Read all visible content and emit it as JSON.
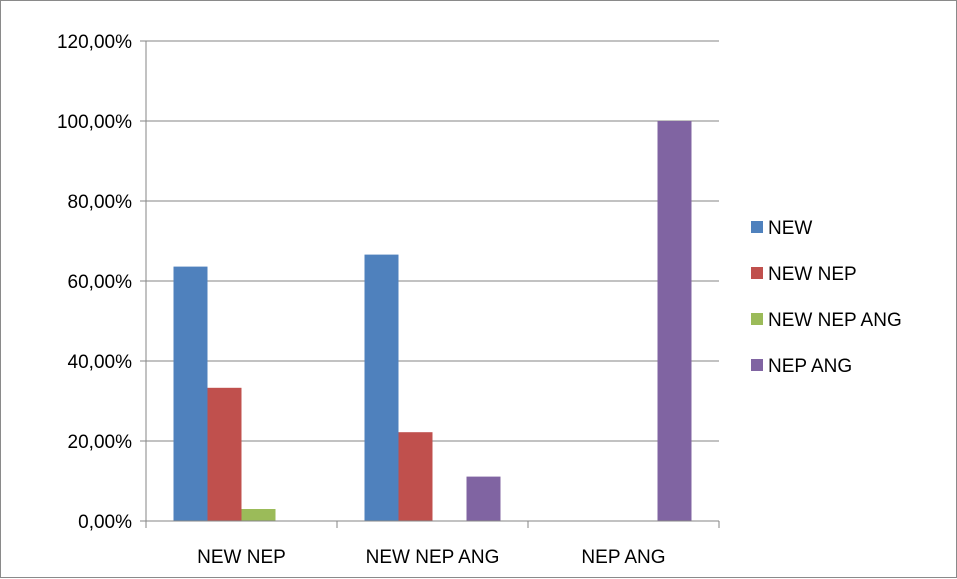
{
  "chart_data": {
    "type": "bar",
    "title": "",
    "xlabel": "",
    "ylabel": "",
    "ylim": [
      0,
      1.2
    ],
    "yticks": [
      {
        "value": 0,
        "label": "0,00%"
      },
      {
        "value": 0.2,
        "label": "20,00%"
      },
      {
        "value": 0.4,
        "label": "40,00%"
      },
      {
        "value": 0.6,
        "label": "60,00%"
      },
      {
        "value": 0.8,
        "label": "80,00%"
      },
      {
        "value": 1.0,
        "label": "100,00%"
      },
      {
        "value": 1.2,
        "label": "120,00%"
      }
    ],
    "categories": [
      "NEW NEP",
      "NEW NEP ANG",
      "NEP ANG"
    ],
    "grid": true,
    "legend_position": "right",
    "series": [
      {
        "name": "NEW",
        "color": "#4f81bd",
        "values": [
          0.636,
          0.666,
          0
        ]
      },
      {
        "name": "NEW NEP",
        "color": "#c0504d",
        "values": [
          0.333,
          0.222,
          0
        ]
      },
      {
        "name": "NEW NEP ANG",
        "color": "#9bbb59",
        "values": [
          0.03,
          0,
          0
        ]
      },
      {
        "name": "NEP ANG",
        "color": "#8064a2",
        "values": [
          0,
          0.111,
          1.0
        ]
      }
    ]
  }
}
